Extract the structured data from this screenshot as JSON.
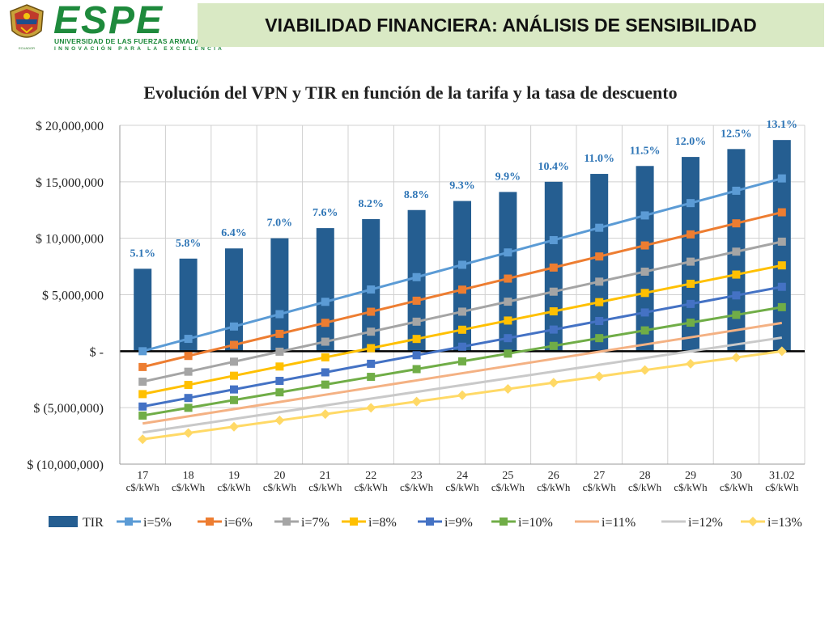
{
  "header": {
    "logo_text": "ESPE",
    "logo_subtitle": "UNIVERSIDAD DE LAS FUERZAS ARMADAS",
    "logo_tagline": "INNOVACIÓN PARA LA EXCELENCIA",
    "seal_caption": "ECUADOR",
    "title": "VIABILIDAD FINANCIERA: ANÁLISIS DE SENSIBILIDAD"
  },
  "colors": {
    "brand_green": "#1e8a3c",
    "banner": "#d9e9c4",
    "bar": "#255e91"
  },
  "chart_data": {
    "type": "bar",
    "title": "Evolución del VPN y TIR en función de la tarifa y la tasa de descuento",
    "categories": [
      [
        "17",
        "c$/kWh"
      ],
      [
        "18",
        "c$/kWh"
      ],
      [
        "19",
        "c$/kWh"
      ],
      [
        "20",
        "c$/kWh"
      ],
      [
        "21",
        "c$/kWh"
      ],
      [
        "22",
        "c$/kWh"
      ],
      [
        "23",
        "c$/kWh"
      ],
      [
        "24",
        "c$/kWh"
      ],
      [
        "25",
        "c$/kWh"
      ],
      [
        "26",
        "c$/kWh"
      ],
      [
        "27",
        "c$/kWh"
      ],
      [
        "28",
        "c$/kWh"
      ],
      [
        "29",
        "c$/kWh"
      ],
      [
        "30",
        "c$/kWh"
      ],
      [
        "31.02",
        "c$/kWh"
      ]
    ],
    "ylim": [
      -10000000,
      20000000
    ],
    "yticks": [
      20000000,
      15000000,
      10000000,
      5000000,
      0,
      -5000000,
      -10000000
    ],
    "ytick_labels": [
      "$ 20,000,000",
      "$ 15,000,000",
      "$ 10,000,000",
      "$ 5,000,000",
      "$ -",
      "$ (5,000,000)",
      "$ (10,000,000)"
    ],
    "grid": true,
    "legend_position": "bottom",
    "bar_series": {
      "name": "TIR",
      "color": "#255e91",
      "values": [
        7300000,
        8200000,
        9100000,
        10000000,
        10900000,
        11700000,
        12500000,
        13300000,
        14100000,
        15000000,
        15700000,
        16400000,
        17200000,
        17900000,
        18700000
      ],
      "labels": [
        "5.1%",
        "5.8%",
        "6.4%",
        "7.0%",
        "7.6%",
        "8.2%",
        "8.8%",
        "9.3%",
        "9.9%",
        "10.4%",
        "11.0%",
        "11.5%",
        "12.0%",
        "12.5%",
        "13.1%"
      ]
    },
    "line_series": [
      {
        "name": "i=5%",
        "color": "#5b9bd5",
        "marker": "square",
        "start": 0,
        "end": 15300000
      },
      {
        "name": "i=6%",
        "color": "#ed7d31",
        "marker": "square",
        "start": -1400000,
        "end": 12300000
      },
      {
        "name": "i=7%",
        "color": "#a5a5a5",
        "marker": "square",
        "start": -2700000,
        "end": 9700000
      },
      {
        "name": "i=8%",
        "color": "#ffc000",
        "marker": "square",
        "start": -3800000,
        "end": 7600000
      },
      {
        "name": "i=9%",
        "color": "#4472c4",
        "marker": "square",
        "start": -4900000,
        "end": 5700000
      },
      {
        "name": "i=10%",
        "color": "#70ad47",
        "marker": "square",
        "start": -5700000,
        "end": 3900000
      },
      {
        "name": "i=11%",
        "color": "#f4b183",
        "marker": "none",
        "start": -6400000,
        "end": 2500000
      },
      {
        "name": "i=12%",
        "color": "#c9c9c9",
        "marker": "none",
        "start": -7200000,
        "end": 1200000
      },
      {
        "name": "i=13%",
        "color": "#ffd966",
        "marker": "diamond",
        "start": -7800000,
        "end": 0
      }
    ]
  }
}
